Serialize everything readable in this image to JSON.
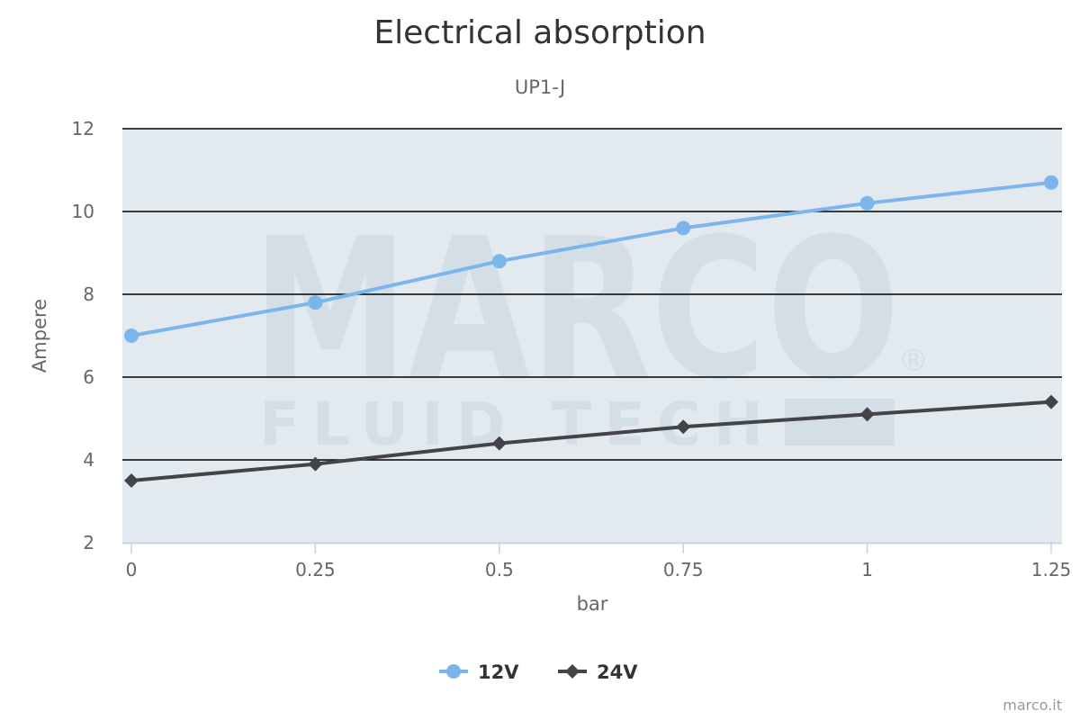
{
  "chart_data": {
    "type": "line",
    "title": "Electrical absorption",
    "subtitle": "UP1-J",
    "xlabel": "bar",
    "ylabel": "Ampere",
    "x": [
      0,
      0.25,
      0.5,
      0.75,
      1,
      1.25
    ],
    "x_tick_labels": [
      "0",
      "0.25",
      "0.5",
      "0.75",
      "1",
      "1.25"
    ],
    "y_ticks": [
      2,
      4,
      6,
      8,
      10,
      12
    ],
    "ylim": [
      2,
      12
    ],
    "grid": true,
    "legend_position": "bottom-center",
    "series": [
      {
        "name": "12V",
        "values": [
          7.0,
          7.8,
          8.8,
          9.6,
          10.2,
          10.7
        ],
        "color": "#7cb5ec",
        "marker": "circle"
      },
      {
        "name": "24V",
        "values": [
          3.5,
          3.9,
          4.4,
          4.8,
          5.1,
          5.4
        ],
        "color": "#434348",
        "marker": "diamond"
      }
    ]
  },
  "watermark": {
    "text": "MARCO",
    "subtext": "FLUID TECH",
    "mark": "®"
  },
  "credit": "marco.it",
  "plot_background": "#e2eaf0"
}
